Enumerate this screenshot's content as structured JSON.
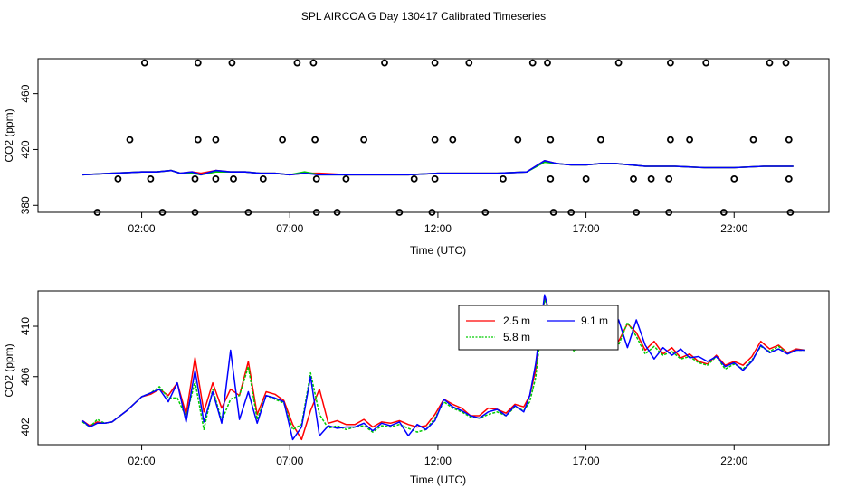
{
  "figure": {
    "title": "SPL AIRCOA G  Day 130417  Calibrated Timeseries"
  },
  "colors": {
    "series_2_5m": "#ff0000",
    "series_5_8m": "#00cc00",
    "series_9_1m": "#0000ff",
    "markers": "#000000"
  },
  "chart_data": [
    {
      "type": "line",
      "panel": "top",
      "xlabel": "Time (UTC)",
      "ylabel": "CO2 (ppm)",
      "xlim": [
        -1.5,
        25.2
      ],
      "ylim": [
        375,
        485
      ],
      "x_ticks": [
        2,
        7,
        12,
        17,
        22
      ],
      "x_tick_labels": [
        "02:00",
        "07:00",
        "12:00",
        "17:00",
        "22:00"
      ],
      "y_ticks": [
        380,
        420,
        460
      ],
      "y_tick_labels": [
        "380",
        "420",
        "460"
      ],
      "series": [
        {
          "name": "2.5 m",
          "color": "#ff0000",
          "x": [
            0,
            1,
            2,
            2.5,
            3,
            3.3,
            3.7,
            4,
            4.5,
            5,
            5.5,
            6,
            6.5,
            7,
            7.5,
            8,
            9,
            10,
            11,
            12,
            13,
            14,
            15,
            15.6,
            16,
            16.5,
            17,
            17.5,
            18,
            19,
            20,
            21,
            22,
            23,
            24
          ],
          "y": [
            402,
            403,
            404,
            404,
            405,
            403,
            404,
            403,
            405,
            404,
            404,
            403,
            403,
            402,
            403,
            403,
            402,
            402,
            402,
            403,
            403,
            403,
            404,
            412,
            410,
            409,
            409,
            410,
            410,
            408,
            408,
            407,
            407,
            408,
            408
          ]
        },
        {
          "name": "5.8 m",
          "color": "#00cc00",
          "x": [
            0,
            1,
            2,
            2.5,
            3,
            3.3,
            3.7,
            4,
            4.5,
            5,
            5.5,
            6,
            6.5,
            7,
            7.5,
            8,
            9,
            10,
            11,
            12,
            13,
            14,
            15,
            15.6,
            16,
            16.5,
            17,
            17.5,
            18,
            19,
            20,
            21,
            22,
            23,
            24
          ],
          "y": [
            402,
            403,
            404,
            404,
            405,
            403,
            403,
            402,
            404,
            404,
            404,
            403,
            403,
            402,
            404,
            402,
            402,
            402,
            402,
            403,
            403,
            403,
            404,
            411,
            410,
            409,
            409,
            410,
            410,
            408,
            408,
            407,
            407,
            408,
            408
          ]
        },
        {
          "name": "9.1 m",
          "color": "#0000ff",
          "x": [
            0,
            1,
            2,
            2.5,
            3,
            3.3,
            3.7,
            4,
            4.5,
            5,
            5.5,
            6,
            6.5,
            7,
            7.5,
            8,
            9,
            10,
            11,
            12,
            13,
            14,
            15,
            15.6,
            16,
            16.5,
            17,
            17.5,
            18,
            19,
            20,
            21,
            22,
            23,
            24
          ],
          "y": [
            402,
            403,
            404,
            404,
            405,
            403,
            404,
            402,
            405,
            404,
            404,
            403,
            403,
            402,
            403,
            402,
            402,
            402,
            402,
            403,
            403,
            403,
            404,
            412,
            410,
            409,
            409,
            410,
            410,
            408,
            408,
            407,
            407,
            408,
            408
          ]
        }
      ],
      "markers": {
        "type": "scatter",
        "symbol": "open-circle",
        "x": [
          2.1,
          3.9,
          5.05,
          7.25,
          7.8,
          10.2,
          11.9,
          13.05,
          15.2,
          15.7,
          18.1,
          19.85,
          21.05,
          23.2,
          23.75,
          1.6,
          3.9,
          4.5,
          6.75,
          7.85,
          9.5,
          11.9,
          12.5,
          14.7,
          15.8,
          17.5,
          19.85,
          20.5,
          22.65,
          23.85,
          1.2,
          2.3,
          3.8,
          4.5,
          5.1,
          6.1,
          7.9,
          8.9,
          11.2,
          11.9,
          14.2,
          15.8,
          17,
          18.6,
          19.2,
          19.8,
          22,
          23.85,
          0.5,
          2.7,
          3.8,
          5.6,
          7.9,
          8.6,
          10.7,
          11.8,
          13.6,
          15.9,
          16.5,
          18.7,
          19.8,
          21.65,
          23.9
        ],
        "y": [
          482,
          482,
          482,
          482,
          482,
          482,
          482,
          482,
          482,
          482,
          482,
          482,
          482,
          482,
          482,
          427,
          427,
          427,
          427,
          427,
          427,
          427,
          427,
          427,
          427,
          427,
          427,
          427,
          427,
          427,
          399,
          399,
          399,
          399,
          399,
          399,
          399,
          399,
          399,
          399,
          399,
          399,
          399,
          399,
          399,
          399,
          399,
          399,
          375,
          375,
          375,
          375,
          375,
          375,
          375,
          375,
          375,
          375,
          375,
          375,
          375,
          375,
          375
        ]
      }
    },
    {
      "type": "line",
      "panel": "bottom",
      "xlabel": "Time (UTC)",
      "ylabel": "CO2 (ppm)",
      "xlim": [
        -1.5,
        25.2
      ],
      "ylim": [
        400.6,
        412.8
      ],
      "x_ticks": [
        2,
        7,
        12,
        17,
        22
      ],
      "x_tick_labels": [
        "02:00",
        "07:00",
        "12:00",
        "17:00",
        "22:00"
      ],
      "y_ticks": [
        402,
        406,
        410
      ],
      "y_tick_labels": [
        "402",
        "406",
        "410"
      ],
      "legend": {
        "position": "top-center",
        "entries": [
          "2.5 m",
          "9.1 m",
          "5.8 m"
        ]
      },
      "series": [
        {
          "name": "2.5 m",
          "color": "#ff0000",
          "x": [
            0,
            0.25,
            0.5,
            0.75,
            1,
            1.5,
            2,
            2.3,
            2.6,
            2.9,
            3.2,
            3.5,
            3.8,
            4.1,
            4.4,
            4.7,
            5,
            5.3,
            5.6,
            5.9,
            6.2,
            6.5,
            6.8,
            7.1,
            7.4,
            7.7,
            8,
            8.3,
            8.6,
            8.9,
            9.2,
            9.5,
            9.8,
            10.1,
            10.4,
            10.7,
            11,
            11.3,
            11.6,
            11.9,
            12.2,
            12.5,
            12.8,
            13.1,
            13.4,
            13.7,
            14,
            14.3,
            14.6,
            14.9,
            15.1,
            15.3,
            15.6,
            15.8,
            16,
            16.3,
            16.6,
            16.9,
            17.2,
            17.5,
            17.8,
            18.1,
            18.4,
            18.7,
            19,
            19.3,
            19.6,
            19.9,
            20.2,
            20.5,
            20.8,
            21.1,
            21.4,
            21.7,
            22,
            22.3,
            22.6,
            22.9,
            23.2,
            23.5,
            23.8,
            24.1,
            24.4
          ],
          "y": [
            402.5,
            402.1,
            402.4,
            402.3,
            402.4,
            403.3,
            404.4,
            404.6,
            405,
            404.5,
            405.5,
            403,
            407.5,
            403.2,
            405.5,
            403.5,
            405,
            404.5,
            407.2,
            403,
            404.8,
            404.6,
            404.1,
            402.2,
            401,
            403.3,
            405,
            402.3,
            402.5,
            402.2,
            402.2,
            402.6,
            402,
            402.4,
            402.3,
            402.5,
            402.2,
            402,
            402.1,
            403,
            404.2,
            403.8,
            403.5,
            402.9,
            402.9,
            403.5,
            403.4,
            403.1,
            403.8,
            403.6,
            404.5,
            406.5,
            412.3,
            411,
            410,
            409.3,
            408.3,
            410,
            409.5,
            409,
            409.8,
            408.8,
            410.2,
            409.5,
            408.1,
            408.8,
            407.8,
            408.3,
            407.5,
            407.8,
            407.2,
            407,
            407.7,
            406.9,
            407.2,
            406.9,
            407.6,
            408.8,
            408.2,
            408.5,
            407.9,
            408.2,
            408.1
          ]
        },
        {
          "name": "5.8 m",
          "color": "#00cc00",
          "x": [
            0,
            0.25,
            0.5,
            0.75,
            1,
            1.5,
            2,
            2.3,
            2.6,
            2.9,
            3.2,
            3.5,
            3.8,
            4.1,
            4.4,
            4.7,
            5,
            5.3,
            5.6,
            5.9,
            6.2,
            6.5,
            6.8,
            7.1,
            7.4,
            7.7,
            8,
            8.3,
            8.6,
            8.9,
            9.2,
            9.5,
            9.8,
            10.1,
            10.4,
            10.7,
            11,
            11.3,
            11.6,
            11.9,
            12.2,
            12.5,
            12.8,
            13.1,
            13.4,
            13.7,
            14,
            14.3,
            14.6,
            14.9,
            15.1,
            15.3,
            15.6,
            15.8,
            16,
            16.3,
            16.6,
            16.9,
            17.2,
            17.5,
            17.8,
            18.1,
            18.4,
            18.7,
            19,
            19.3,
            19.6,
            19.9,
            20.2,
            20.5,
            20.8,
            21.1,
            21.4,
            21.7,
            22,
            22.3,
            22.6,
            22.9,
            23.2,
            23.5,
            23.8,
            24.1,
            24.4
          ],
          "y": [
            402.4,
            402,
            402.6,
            402.3,
            402.4,
            403.3,
            404.4,
            404.7,
            405.2,
            404.3,
            404.3,
            402.8,
            405.6,
            401.8,
            405,
            402.5,
            404.2,
            404.5,
            406.8,
            402.6,
            404.5,
            404.2,
            403.9,
            401.8,
            402.2,
            406.3,
            403,
            401.9,
            402.1,
            401.8,
            402,
            402.1,
            401.6,
            402.1,
            402,
            402.2,
            401.9,
            401.6,
            401.8,
            402.7,
            404,
            403.5,
            403.2,
            402.8,
            402.7,
            403,
            403.2,
            402.9,
            403.6,
            403.3,
            404,
            405.9,
            412.1,
            411.2,
            410.3,
            409.4,
            408,
            409.2,
            409,
            409.6,
            409.3,
            408.5,
            410.3,
            409.2,
            407.8,
            408.4,
            407.7,
            408,
            407.4,
            407.6,
            407.1,
            406.9,
            407.6,
            406.6,
            407,
            406.6,
            407.3,
            408.4,
            408,
            408.4,
            407.8,
            408.1,
            408.1
          ]
        },
        {
          "name": "9.1 m",
          "color": "#0000ff",
          "x": [
            0,
            0.25,
            0.5,
            0.75,
            1,
            1.5,
            2,
            2.3,
            2.6,
            2.9,
            3.2,
            3.5,
            3.8,
            4.1,
            4.4,
            4.7,
            5,
            5.3,
            5.6,
            5.9,
            6.2,
            6.5,
            6.8,
            7.1,
            7.4,
            7.7,
            8,
            8.3,
            8.6,
            8.9,
            9.2,
            9.5,
            9.8,
            10.1,
            10.4,
            10.7,
            11,
            11.3,
            11.6,
            11.9,
            12.2,
            12.5,
            12.8,
            13.1,
            13.4,
            13.7,
            14,
            14.3,
            14.6,
            14.9,
            15.1,
            15.3,
            15.6,
            15.8,
            16,
            16.3,
            16.6,
            16.9,
            17.2,
            17.5,
            17.8,
            18.1,
            18.4,
            18.7,
            19,
            19.3,
            19.6,
            19.9,
            20.2,
            20.5,
            20.8,
            21.1,
            21.4,
            21.7,
            22,
            22.3,
            22.6,
            22.9,
            23.2,
            23.5,
            23.8,
            24.1,
            24.4
          ],
          "y": [
            402.5,
            402,
            402.3,
            402.3,
            402.4,
            403.3,
            404.4,
            404.7,
            405,
            404,
            405.5,
            402.4,
            406.5,
            402.4,
            404.8,
            402.3,
            408.1,
            402.6,
            404.8,
            402.3,
            404.5,
            404.3,
            404,
            401,
            402,
            406,
            401.3,
            402.1,
            401.9,
            402,
            402,
            402.3,
            401.7,
            402.3,
            402.1,
            402.4,
            401.3,
            402.2,
            401.8,
            402.5,
            404.2,
            403.6,
            403.3,
            402.9,
            402.7,
            403.2,
            403.4,
            402.9,
            403.7,
            403.2,
            404.5,
            407,
            412.5,
            410.8,
            409.5,
            410.5,
            408.5,
            409.3,
            410,
            410.8,
            408.5,
            410.5,
            408.3,
            410.5,
            408.5,
            407.4,
            408.3,
            407.7,
            408.2,
            407.5,
            407.6,
            407.2,
            407.6,
            406.8,
            407.1,
            406.5,
            407.2,
            408.5,
            407.9,
            408.2,
            407.8,
            408.1,
            408.1
          ]
        }
      ]
    }
  ]
}
